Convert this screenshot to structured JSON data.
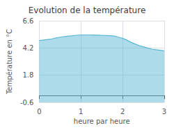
{
  "chart_data": {
    "type": "area",
    "title": "Evolution de la température",
    "xlabel": "heure par heure",
    "ylabel": "Température en °C",
    "x": [
      0,
      0.1,
      0.2,
      0.3,
      0.4,
      0.5,
      0.6,
      0.7,
      0.8,
      0.9,
      1.0,
      1.1,
      1.2,
      1.3,
      1.4,
      1.5,
      1.6,
      1.7,
      1.8,
      1.9,
      2.0,
      2.1,
      2.2,
      2.3,
      2.4,
      2.5,
      2.6,
      2.7,
      2.8,
      2.9,
      3.0
    ],
    "values": [
      4.85,
      4.9,
      4.95,
      5.0,
      5.08,
      5.15,
      5.2,
      5.25,
      5.28,
      5.32,
      5.35,
      5.35,
      5.35,
      5.34,
      5.33,
      5.32,
      5.3,
      5.28,
      5.25,
      5.15,
      5.05,
      4.9,
      4.7,
      4.55,
      4.4,
      4.3,
      4.2,
      4.1,
      4.05,
      4.0,
      3.95
    ],
    "color": "#5bb8d4",
    "xlim": [
      0,
      3
    ],
    "xticks": [
      0,
      1,
      2,
      3
    ],
    "ylim": [
      -0.6,
      6.6
    ],
    "yticks": [
      -0.6,
      1.8,
      4.2,
      6.6
    ],
    "grid": true
  }
}
